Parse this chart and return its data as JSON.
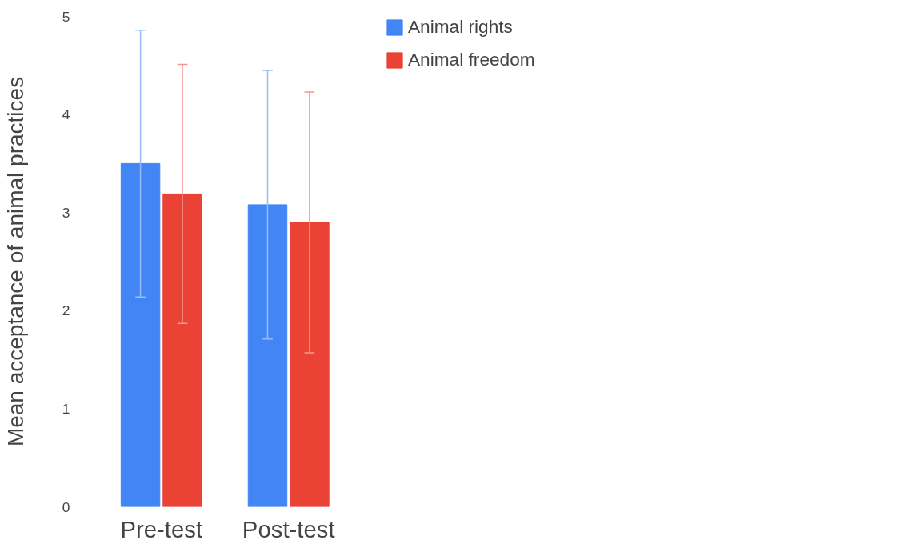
{
  "chart_data": {
    "type": "bar",
    "ylabel": "Mean acceptance of animal practices",
    "categories": [
      "Pre-test",
      "Post-test"
    ],
    "series": [
      {
        "name": "Animal rights",
        "color": "#4285f4",
        "values": [
          3.5,
          3.08
        ],
        "errors": [
          1.36,
          1.37
        ]
      },
      {
        "name": "Animal freedom",
        "color": "#ea4335",
        "values": [
          3.19,
          2.9
        ],
        "errors": [
          1.32,
          1.33
        ]
      }
    ],
    "ylim": [
      0,
      5
    ],
    "yticks": [
      0,
      1,
      2,
      3,
      4,
      5
    ],
    "grid": false,
    "legend": "top right"
  }
}
